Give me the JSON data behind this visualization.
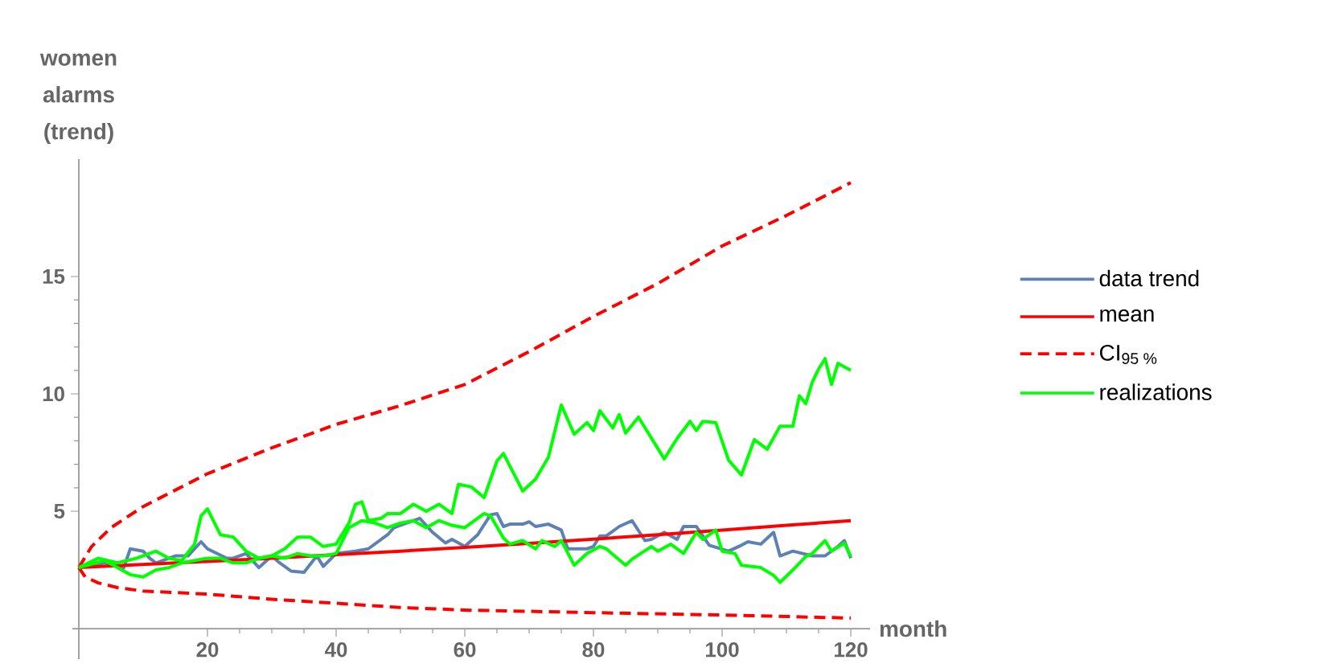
{
  "chart_data": {
    "type": "line",
    "xlabel": "month",
    "ylabel": "women alarms (trend)",
    "xlim": [
      -1,
      123
    ],
    "ylim": [
      -1.3,
      20
    ],
    "xticks": [
      20,
      40,
      60,
      80,
      100,
      120
    ],
    "yticks": [
      5,
      10,
      15
    ],
    "legend": "right",
    "grid": false,
    "marker": "none",
    "series": [
      {
        "name": "data trend",
        "color": "#5e81b5",
        "line_style": "solid",
        "x": [
          0,
          4,
          7,
          8,
          10,
          11,
          12,
          15,
          17,
          19,
          20,
          23,
          24,
          26,
          28,
          30,
          31,
          33,
          35,
          37,
          38,
          40,
          43,
          45,
          48,
          49,
          53,
          55,
          57,
          58,
          60,
          62,
          64,
          65,
          66,
          67,
          69,
          70,
          71,
          73,
          75,
          76,
          79,
          80,
          81,
          82,
          84,
          86,
          88,
          89,
          91,
          93,
          94,
          96,
          98,
          101,
          103,
          104,
          106,
          108,
          109,
          111,
          114,
          116,
          118,
          119,
          120
        ],
        "values": [
          2.6,
          2.8,
          2.6,
          3.4,
          3.3,
          3.0,
          2.8,
          3.1,
          3.1,
          3.7,
          3.4,
          3.0,
          3.0,
          3.2,
          2.6,
          3.1,
          2.85,
          2.45,
          2.4,
          3.1,
          2.65,
          3.2,
          3.3,
          3.4,
          4.0,
          4.3,
          4.7,
          4.1,
          3.65,
          3.8,
          3.5,
          4.0,
          4.85,
          4.9,
          4.35,
          4.45,
          4.45,
          4.55,
          4.35,
          4.45,
          4.2,
          3.4,
          3.4,
          3.5,
          3.95,
          3.95,
          4.35,
          4.6,
          3.75,
          3.8,
          4.1,
          3.8,
          4.35,
          4.35,
          3.55,
          3.3,
          3.55,
          3.7,
          3.6,
          4.1,
          3.1,
          3.3,
          3.1,
          3.1,
          3.5,
          3.75,
          3.0
        ]
      },
      {
        "name": "mean",
        "color": "#ff0000",
        "line_style": "solid",
        "x": [
          0,
          10,
          20,
          30,
          40,
          50,
          60,
          70,
          80,
          90,
          100,
          110,
          120
        ],
        "values": [
          2.6,
          2.73,
          2.86,
          3.0,
          3.15,
          3.3,
          3.46,
          3.63,
          3.81,
          4.0,
          4.2,
          4.4,
          4.6
        ]
      },
      {
        "name": "CI$_{95 %}$",
        "color": "#ff0000",
        "line_style": "dashed",
        "x": [
          0,
          2,
          5,
          10,
          20,
          30,
          40,
          50,
          60,
          70,
          80,
          90,
          100,
          110,
          120
        ],
        "values": [
          2.6,
          3.5,
          4.3,
          5.2,
          6.6,
          7.7,
          8.7,
          9.5,
          10.4,
          11.8,
          13.3,
          14.7,
          16.3,
          17.6,
          19.0
        ]
      },
      {
        "color": "#ff0000",
        "line_style": "dashed",
        "x": [
          0,
          1,
          3,
          6,
          10,
          20,
          30,
          40,
          50,
          60,
          80,
          100,
          120
        ],
        "values": [
          2.6,
          2.2,
          1.95,
          1.75,
          1.6,
          1.47,
          1.25,
          1.08,
          0.9,
          0.79,
          0.68,
          0.58,
          0.45
        ]
      },
      {
        "name": "realizations",
        "color": "#00ff00",
        "line_style": "solid",
        "x": [
          0,
          3,
          6,
          9,
          12,
          14,
          16,
          18,
          19,
          20,
          22,
          24,
          26,
          28,
          30,
          32,
          34,
          36,
          38,
          40,
          42,
          43,
          44,
          45,
          47,
          48,
          50,
          52,
          54,
          56,
          58,
          59,
          61,
          63,
          65,
          66,
          69,
          71,
          73,
          75,
          77,
          79,
          80,
          81,
          83,
          84,
          85,
          87,
          91,
          93,
          95,
          96,
          97,
          99,
          101,
          103,
          105,
          107,
          109,
          111,
          112,
          113,
          114,
          115,
          116,
          117,
          118,
          120
        ],
        "values": [
          2.6,
          3.0,
          2.8,
          3.0,
          3.3,
          3.0,
          2.9,
          3.6,
          4.8,
          5.1,
          4.0,
          3.9,
          3.3,
          3.0,
          3.1,
          3.4,
          3.9,
          3.9,
          3.5,
          3.6,
          4.5,
          5.3,
          5.4,
          4.6,
          4.7,
          4.9,
          4.9,
          5.3,
          5.0,
          5.3,
          4.9,
          6.15,
          6.04,
          5.58,
          7.14,
          7.46,
          5.86,
          6.37,
          7.3,
          9.53,
          8.28,
          8.78,
          8.44,
          9.28,
          8.55,
          9.12,
          8.33,
          9.01,
          7.23,
          8.1,
          8.83,
          8.44,
          8.83,
          8.78,
          7.18,
          6.54,
          8.05,
          7.64,
          8.62,
          8.62,
          9.92,
          9.58,
          10.49,
          11.06,
          11.5,
          10.4,
          11.3,
          11.0
        ]
      },
      {
        "color": "#00ff00",
        "line_style": "solid",
        "x": [
          0,
          4,
          6,
          8,
          10,
          12,
          14,
          16,
          18,
          20,
          22,
          24,
          26,
          28,
          30,
          32,
          34,
          36,
          38,
          40,
          42,
          44,
          46,
          48,
          50,
          52,
          54,
          56,
          58,
          60,
          63,
          64,
          66,
          67,
          69,
          71,
          72,
          74,
          75,
          77,
          79,
          81,
          82,
          85,
          86,
          89,
          90,
          92,
          94,
          96,
          97,
          99,
          100,
          102,
          103,
          106,
          108,
          109,
          111,
          113,
          114,
          116,
          117,
          119,
          120
        ],
        "values": [
          2.6,
          2.9,
          2.6,
          2.3,
          2.2,
          2.5,
          2.6,
          2.8,
          2.9,
          3.0,
          3.0,
          2.8,
          2.8,
          3.0,
          3.1,
          3.0,
          3.2,
          3.1,
          3.1,
          3.2,
          4.3,
          4.6,
          4.5,
          4.3,
          4.5,
          4.6,
          4.3,
          4.6,
          4.4,
          4.3,
          4.9,
          4.8,
          3.86,
          3.6,
          3.75,
          3.4,
          3.75,
          3.5,
          3.75,
          2.7,
          3.2,
          3.5,
          3.4,
          2.7,
          2.96,
          3.5,
          3.3,
          3.6,
          3.2,
          4.1,
          3.8,
          4.2,
          3.3,
          3.2,
          2.7,
          2.6,
          2.27,
          1.97,
          2.5,
          3.07,
          3.2,
          3.75,
          3.3,
          3.64,
          3.07
        ]
      }
    ]
  }
}
